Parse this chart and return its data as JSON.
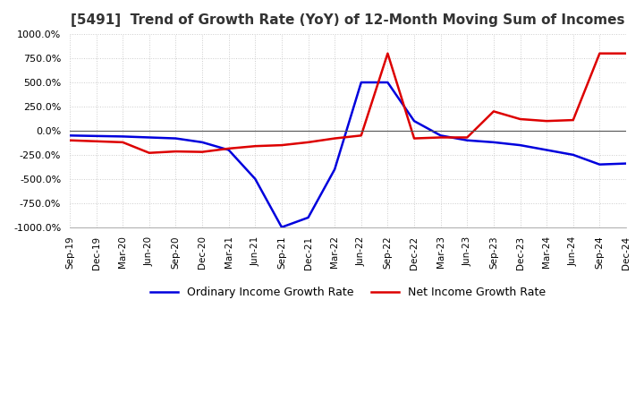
{
  "title": "[5491]  Trend of Growth Rate (YoY) of 12-Month Moving Sum of Incomes",
  "title_fontsize": 11,
  "ylim": [
    -1000,
    1000
  ],
  "yticks": [
    -1000,
    -750,
    -500,
    -250,
    0,
    250,
    500,
    750,
    1000
  ],
  "background_color": "#ffffff",
  "grid_color": "#cccccc",
  "ordinary_color": "#0000dd",
  "net_color": "#dd0000",
  "legend_labels": [
    "Ordinary Income Growth Rate",
    "Net Income Growth Rate"
  ],
  "x_labels": [
    "Sep-19",
    "Dec-19",
    "Mar-20",
    "Jun-20",
    "Sep-20",
    "Dec-20",
    "Mar-21",
    "Jun-21",
    "Sep-21",
    "Dec-21",
    "Mar-22",
    "Jun-22",
    "Sep-22",
    "Dec-22",
    "Mar-23",
    "Jun-23",
    "Sep-23",
    "Dec-23",
    "Mar-24",
    "Jun-24",
    "Sep-24",
    "Dec-24"
  ],
  "ordinary_income": [
    -50,
    -55,
    -60,
    -70,
    -80,
    -120,
    -200,
    -500,
    -1000,
    -900,
    -400,
    500,
    500,
    100,
    -50,
    -100,
    -120,
    -150,
    -200,
    -250,
    -350,
    -340
  ],
  "net_income": [
    -100,
    -110,
    -120,
    -230,
    -215,
    -220,
    -185,
    -160,
    -150,
    -120,
    -80,
    -50,
    800,
    -80,
    -70,
    -70,
    200,
    120,
    100,
    110,
    800,
    800
  ]
}
